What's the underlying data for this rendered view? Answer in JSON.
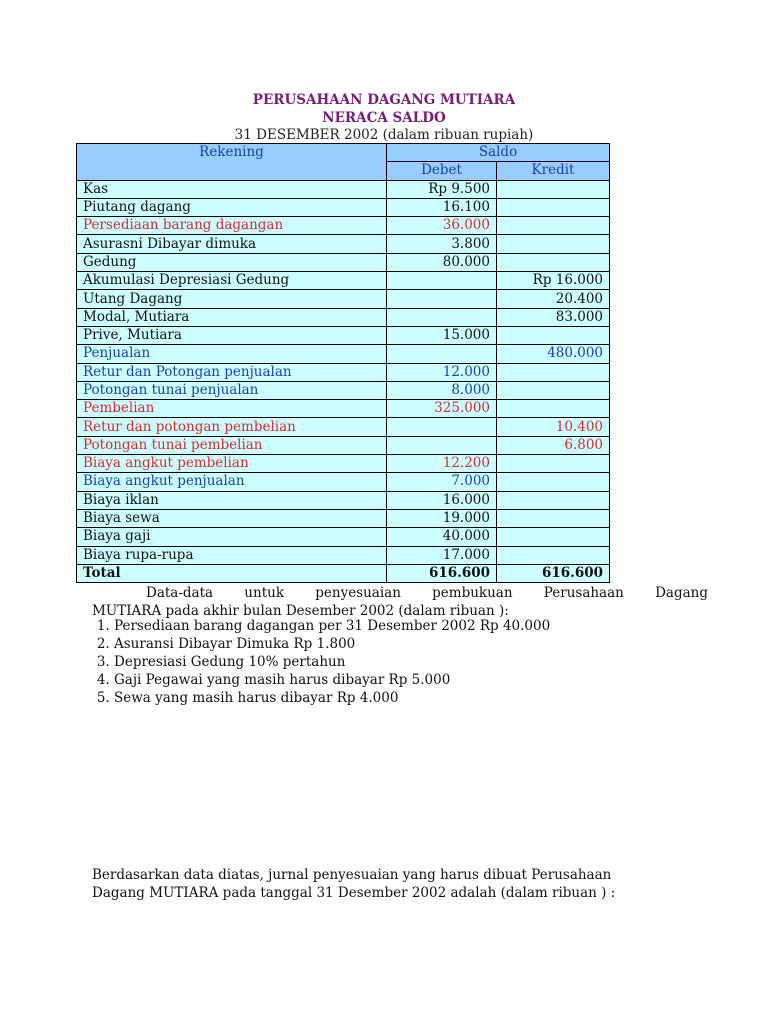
{
  "title": "PERUSAHAAN DAGANG MUTIARA",
  "subtitle": "NERACA SALDO",
  "date_line": "31 DESEMBER  2002 (dalam ribuan rupiah)",
  "table": {
    "headers": {
      "rekening": "Rekening",
      "saldo": "Saldo",
      "debet": "Debet",
      "kredit": "Kredit"
    },
    "rows": [
      {
        "name": "Kas",
        "debet": "Rp 9.500",
        "kredit": "",
        "color": ""
      },
      {
        "name": "Piutang dagang",
        "debet": "16.100",
        "kredit": "",
        "color": ""
      },
      {
        "name": "Persediaan barang dagangan",
        "debet": "36.000",
        "kredit": "",
        "color": "red"
      },
      {
        "name": "Asurasni Dibayar dimuka",
        "debet": "3.800",
        "kredit": "",
        "color": ""
      },
      {
        "name": "Gedung",
        "debet": "80.000",
        "kredit": "",
        "color": ""
      },
      {
        "name": "Akumulasi Depresiasi Gedung",
        "debet": "",
        "kredit": "Rp 16.000",
        "color": ""
      },
      {
        "name": "Utang Dagang",
        "debet": "",
        "kredit": "20.400",
        "color": ""
      },
      {
        "name": "Modal, Mutiara",
        "debet": "",
        "kredit": "83.000",
        "color": ""
      },
      {
        "name": "Prive, Mutiara",
        "debet": "15.000",
        "kredit": "",
        "color": ""
      },
      {
        "name": "Penjualan",
        "debet": "",
        "kredit": "480.000",
        "color": "blue"
      },
      {
        "name": "Retur dan Potongan penjualan",
        "debet": "12.000",
        "kredit": "",
        "color": "blue"
      },
      {
        "name": "Potongan tunai penjualan",
        "debet": "8.000",
        "kredit": "",
        "color": "blue"
      },
      {
        "name": "Pembelian",
        "debet": "325.000",
        "kredit": "",
        "color": "red"
      },
      {
        "name": "Retur dan potongan pembelian",
        "debet": "",
        "kredit": "10.400",
        "color": "red"
      },
      {
        "name": "Potongan tunai pembelian",
        "debet": "",
        "kredit": "6.800",
        "color": "red"
      },
      {
        "name": "Biaya angkut pembelian",
        "debet": "12.200",
        "kredit": "",
        "color": "red"
      },
      {
        "name": "Biaya angkut penjualan",
        "debet": "7.000",
        "kredit": "",
        "color": "blue"
      },
      {
        "name": "Biaya iklan",
        "debet": "16.000",
        "kredit": "",
        "color": ""
      },
      {
        "name": "Biaya sewa",
        "debet": "19.000",
        "kredit": "",
        "color": ""
      },
      {
        "name": "Biaya gaji",
        "debet": "40.000",
        "kredit": "",
        "color": ""
      },
      {
        "name": "Biaya rupa-rupa",
        "debet": "17.000",
        "kredit": "",
        "color": ""
      }
    ],
    "total": {
      "name": "Total",
      "debet": "616.600",
      "kredit": "616.600"
    }
  },
  "colors": {
    "header_bg": "#99ccff",
    "row_bg": "#ccffff",
    "title": "#7a1a7a",
    "blue": "#1a3fb0",
    "red": "#e02828"
  },
  "intro_line1": "Data-data untuk penyesuaian pembukuan Perusahaan Dagang",
  "intro_line2": "MUTIARA  pada akhir bulan Desember  2002 (dalam ribuan ):",
  "items": [
    "Persediaan barang dagangan per 31 Desember 2002 Rp 40.000",
    "Asuransi Dibayar Dimuka Rp 1.800",
    "Depresiasi Gedung 10% pertahun",
    "Gaji Pegawai yang masih harus dibayar Rp 5.000",
    "Sewa yang masih harus dibayar Rp 4.000"
  ],
  "question_line1": "Berdasarkan data diatas, jurnal penyesuaian yang harus dibuat Perusahaan",
  "question_line2": "Dagang MUTIARA pada tanggal 31 Desember 2002 adalah (dalam ribuan ) :"
}
